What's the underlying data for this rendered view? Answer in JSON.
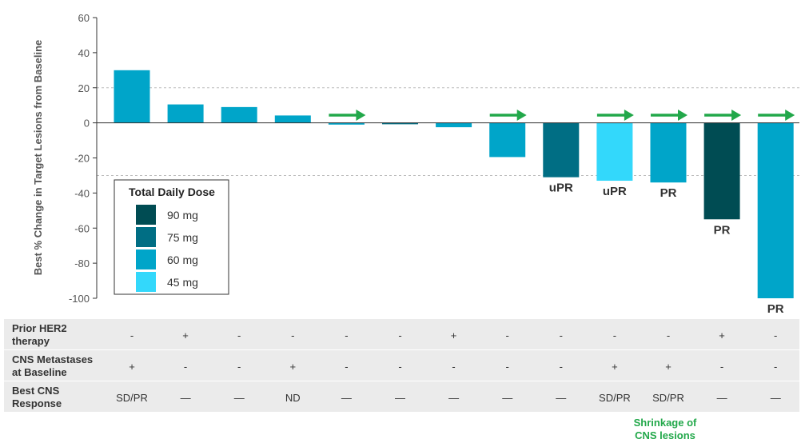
{
  "chart_data": {
    "type": "bar",
    "ylabel": "Best % Change in Target Lesions from Baseline",
    "ylim": [
      -100,
      60
    ],
    "yticks": [
      60,
      40,
      20,
      0,
      -20,
      -40,
      -60,
      -80,
      -100
    ],
    "reference_lines": [
      20,
      -30
    ],
    "values": [
      30,
      10.5,
      9,
      4.2,
      -1,
      -0.8,
      -2.5,
      -19.5,
      -31,
      -33,
      -34,
      -55,
      -100
    ],
    "dose_mg": [
      "60 mg",
      "60 mg",
      "60 mg",
      "60 mg",
      "60 mg",
      "75 mg",
      "60 mg",
      "60 mg",
      "75 mg",
      "45 mg",
      "60 mg",
      "90 mg",
      "60 mg"
    ],
    "ongoing_arrow": [
      false,
      false,
      false,
      false,
      true,
      false,
      false,
      true,
      false,
      true,
      true,
      true,
      true
    ],
    "response_labels": [
      "",
      "",
      "",
      "",
      "",
      "",
      "",
      "",
      "uPR",
      "uPR",
      "PR",
      "PR",
      "PR"
    ]
  },
  "legend": {
    "title": "Total Daily Dose",
    "items": [
      {
        "label": "90 mg",
        "color": "#004c53"
      },
      {
        "label": "75 mg",
        "color": "#006e84"
      },
      {
        "label": "60 mg",
        "color": "#00a5c9"
      },
      {
        "label": "45 mg",
        "color": "#33d8fb"
      }
    ]
  },
  "colors": {
    "arrow": "#22a84a",
    "row_band": "#ebebeb",
    "axis": "#333333",
    "reference_line": "#bbbbbb"
  },
  "table": {
    "rows": [
      {
        "label_lines": [
          "Prior HER2",
          "therapy"
        ],
        "values": [
          "-",
          "+",
          "-",
          "-",
          "-",
          "-",
          "+",
          "-",
          "-",
          "-",
          "-",
          "+",
          "-"
        ]
      },
      {
        "label_lines": [
          "CNS Metastases",
          "at Baseline"
        ],
        "values": [
          "+",
          "-",
          "-",
          "+",
          "-",
          "-",
          "-",
          "-",
          "-",
          "+",
          "+",
          "-",
          "-"
        ]
      },
      {
        "label_lines": [
          "Best CNS",
          "Response"
        ],
        "values": [
          "SD/PR",
          "—",
          "—",
          "ND",
          "—",
          "—",
          "—",
          "—",
          "—",
          "SD/PR",
          "SD/PR",
          "—",
          "—"
        ]
      }
    ]
  },
  "footnote": {
    "lines": [
      "Shrinkage of",
      "CNS lesions"
    ]
  }
}
